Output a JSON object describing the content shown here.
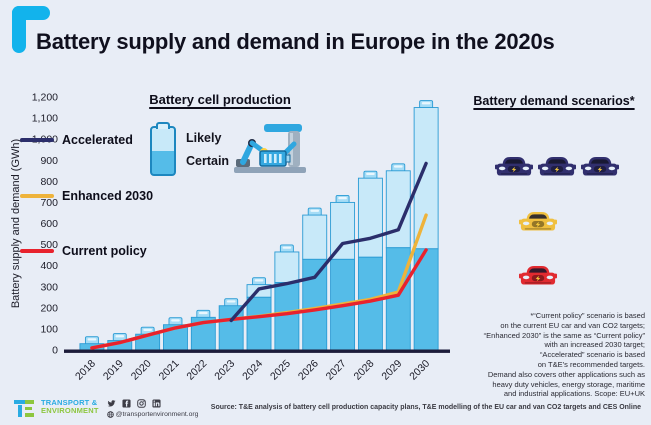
{
  "title": "Battery supply and demand in Europe in the 2020s",
  "colors": {
    "background": "#e8edf6",
    "accent_cyan": "#12b3ec",
    "baseline": "#1c1c3a",
    "axis_text": "#1c1c28"
  },
  "chart_data": {
    "type": "bar",
    "title": "Battery supply and demand in Europe in the 2020s",
    "categories": [
      "2018",
      "2019",
      "2020",
      "2021",
      "2022",
      "2023",
      "2024",
      "2025",
      "2026",
      "2027",
      "2028",
      "2029",
      "2030"
    ],
    "xlabel": "",
    "ylabel": "Battery supply and demand (GWh)",
    "ylim": [
      0,
      1200
    ],
    "ytick_step": 100,
    "grid": false,
    "legend_position": "overlay-top-left and right column",
    "bar_style": "stacked battery-shaped bars (Certain = lower dark segment, Likely = full bar height)",
    "bar_series": [
      {
        "name": "Certain",
        "color": "#55bce8",
        "values": [
          30,
          45,
          75,
          120,
          155,
          210,
          250,
          320,
          430,
          430,
          440,
          485,
          480
        ]
      },
      {
        "name": "Likely (total bar height)",
        "color": "#c8e9f9",
        "values": [
          30,
          45,
          75,
          120,
          155,
          210,
          310,
          465,
          640,
          700,
          815,
          850,
          1150
        ]
      }
    ],
    "line_series": [
      {
        "name": "Enhanced 2030",
        "color": "#eeb33b",
        "values": [
          10,
          35,
          70,
          105,
          130,
          145,
          160,
          178,
          197,
          218,
          240,
          275,
          640
        ]
      },
      {
        "name": "Current policy",
        "color": "#e8222d",
        "values": [
          10,
          35,
          70,
          105,
          130,
          145,
          158,
          172,
          190,
          210,
          232,
          260,
          475
        ]
      },
      {
        "name": "Accelerated",
        "color": "#2b2e6b",
        "values": [
          null,
          null,
          null,
          null,
          null,
          140,
          290,
          315,
          345,
          505,
          530,
          570,
          885
        ]
      }
    ],
    "bar_stroke": "#2a9bd4",
    "bar_cap_fill": "#a5dcf6"
  },
  "production_legend": {
    "title": "Battery cell production",
    "items": [
      "Likely",
      "Certain"
    ]
  },
  "demand_legend": {
    "title": "Battery demand scenarios*",
    "items": [
      {
        "label": "Accelerated",
        "color": "#2b2e6b",
        "car_color": "#312f6e",
        "cars": 3
      },
      {
        "label": "Enhanced 2030",
        "color": "#eeb33b",
        "car_color": "#f0c040",
        "cars": 1
      },
      {
        "label": "Current policy",
        "color": "#e8222d",
        "car_color": "#e12a30",
        "cars": 1
      }
    ]
  },
  "footnote": {
    "lines": [
      "*“Current policy” scenario is based",
      "on the current EU car and van CO2 targets;",
      "“Enhanced 2030” is the same as “Current policy”",
      "with an increased 2030 target;",
      "“Accelerated” scenario is based",
      "on T&E’s recommended targets.",
      "Demand also covers other applications such as",
      "heavy duty vehicles, energy storage, maritime",
      "and industrial applications. Scope: EU+UK"
    ]
  },
  "footer": {
    "org_line1": "TRANSPORT &",
    "org_line2": "ENVIRONMENT",
    "handle": "@transportenvironment.org",
    "source": "Source: T&E analysis of battery cell production capacity plans, T&E modelling of the EU car and van CO2 targets and CES Online"
  }
}
